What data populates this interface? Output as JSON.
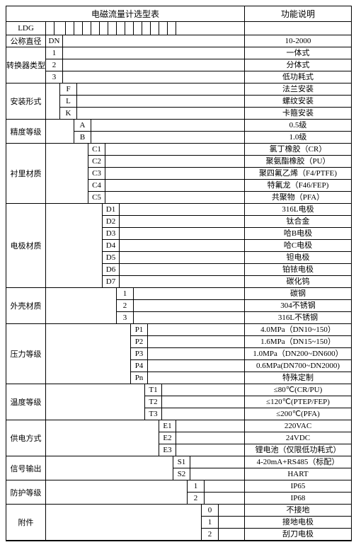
{
  "title_left": "电磁流量计选型表",
  "title_right": "功能说明",
  "code_label": "LDG",
  "groups": [
    {
      "param": "公称直径",
      "indent": 0,
      "desc_only": "10-2000",
      "code_prefix": "DN"
    },
    {
      "param": "转换器类型",
      "indent": 1,
      "items": [
        {
          "code": "1",
          "desc": "一体式"
        },
        {
          "code": "2",
          "desc": "分体式"
        },
        {
          "code": "3",
          "desc": "低功耗式"
        }
      ]
    },
    {
      "param": "安装形式",
      "indent": 2,
      "items": [
        {
          "code": "F",
          "desc": "法兰安装"
        },
        {
          "code": "L",
          "desc": "螺纹安装"
        },
        {
          "code": "K",
          "desc": "卡箍安装"
        }
      ]
    },
    {
      "param": "精度等级",
      "indent": 3,
      "items": [
        {
          "code": "A",
          "desc": "0.5级"
        },
        {
          "code": "B",
          "desc": "1.0级"
        }
      ]
    },
    {
      "param": "衬里材质",
      "indent": 4,
      "items": [
        {
          "code": "C1",
          "desc": "氯丁橡胶（CR）"
        },
        {
          "code": "C2",
          "desc": "聚氨酯橡胶（PU）"
        },
        {
          "code": "C3",
          "desc": "聚四氟乙烯（F4/PTFE)"
        },
        {
          "code": "C4",
          "desc": "特氟龙（F46/FEP)"
        },
        {
          "code": "C5",
          "desc": "共聚物（PFA）"
        }
      ]
    },
    {
      "param": "电极材质",
      "indent": 5,
      "items": [
        {
          "code": "D1",
          "desc": "316L电极"
        },
        {
          "code": "D2",
          "desc": "钛合金"
        },
        {
          "code": "D3",
          "desc": "哈B电极"
        },
        {
          "code": "D4",
          "desc": "哈C电极"
        },
        {
          "code": "D5",
          "desc": "钽电极"
        },
        {
          "code": "D6",
          "desc": "铂铱电极"
        },
        {
          "code": "D7",
          "desc": "碳化钨"
        }
      ]
    },
    {
      "param": "外壳材质",
      "indent": 6,
      "items": [
        {
          "code": "1",
          "desc": "碳钢"
        },
        {
          "code": "2",
          "desc": "304不锈钢"
        },
        {
          "code": "3",
          "desc": "316L不锈钢"
        }
      ]
    },
    {
      "param": "压力等级",
      "indent": 7,
      "items": [
        {
          "code": "P1",
          "desc": "4.0MPa（DN10~150）"
        },
        {
          "code": "P2",
          "desc": "1.6MPa（DN15~150）"
        },
        {
          "code": "P3",
          "desc": "1.0MPa（DN200~DN600）"
        },
        {
          "code": "P4",
          "desc": "0.6MPa(DN700~DN2000)"
        },
        {
          "code": "Pn",
          "desc": "特殊定制"
        }
      ]
    },
    {
      "param": "温度等级",
      "indent": 8,
      "items": [
        {
          "code": "T1",
          "desc": "≤80℃(CR/PU)"
        },
        {
          "code": "T2",
          "desc": "≤120℃(PTEP/FEP)"
        },
        {
          "code": "T3",
          "desc": "≤200℃(PFA)"
        }
      ]
    },
    {
      "param": "供电方式",
      "indent": 9,
      "items": [
        {
          "code": "E1",
          "desc": "220VAC"
        },
        {
          "code": "E2",
          "desc": "24VDC"
        },
        {
          "code": "E3",
          "desc": "锂电池（仅限低功耗式）"
        }
      ]
    },
    {
      "param": "信号输出",
      "indent": 10,
      "items": [
        {
          "code": "S1",
          "desc": "4-20mA+RS485（标配）"
        },
        {
          "code": "S2",
          "desc": "HART"
        }
      ]
    },
    {
      "param": "防护等级",
      "indent": 11,
      "items": [
        {
          "code": "1",
          "desc": "IP65"
        },
        {
          "code": "2",
          "desc": "IP68"
        }
      ]
    },
    {
      "param": "附件",
      "indent": 12,
      "items": [
        {
          "code": "0",
          "desc": "不接地"
        },
        {
          "code": "1",
          "desc": "接地电极"
        },
        {
          "code": "2",
          "desc": "刮刀电极"
        }
      ]
    }
  ],
  "layout": {
    "indent_width": 20,
    "param_width": 55,
    "desc_width": 150,
    "n_code_boxes": 14
  }
}
